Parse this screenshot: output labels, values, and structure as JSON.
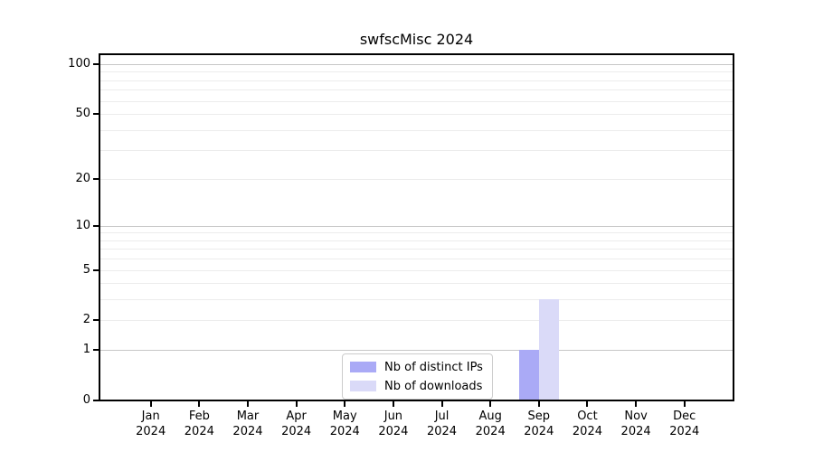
{
  "chart_data": {
    "type": "bar",
    "title": "swfscMisc 2024",
    "categories": [
      {
        "month": "Jan",
        "year": "2024"
      },
      {
        "month": "Feb",
        "year": "2024"
      },
      {
        "month": "Mar",
        "year": "2024"
      },
      {
        "month": "Apr",
        "year": "2024"
      },
      {
        "month": "May",
        "year": "2024"
      },
      {
        "month": "Jun",
        "year": "2024"
      },
      {
        "month": "Jul",
        "year": "2024"
      },
      {
        "month": "Aug",
        "year": "2024"
      },
      {
        "month": "Sep",
        "year": "2024"
      },
      {
        "month": "Oct",
        "year": "2024"
      },
      {
        "month": "Nov",
        "year": "2024"
      },
      {
        "month": "Dec",
        "year": "2024"
      }
    ],
    "series": [
      {
        "name": "Nb of distinct IPs",
        "color": "#aaaaf6",
        "values": [
          0,
          0,
          0,
          0,
          0,
          0,
          0,
          0,
          1,
          0,
          0,
          0
        ]
      },
      {
        "name": "Nb of downloads",
        "color": "#dadaf8",
        "values": [
          0,
          0,
          0,
          0,
          0,
          0,
          0,
          0,
          3,
          0,
          0,
          0
        ]
      }
    ],
    "xlabel": "",
    "ylabel": "",
    "y_scale": "log1p",
    "ylim": [
      0,
      115
    ],
    "y_ticks": [
      0,
      1,
      2,
      5,
      10,
      20,
      50,
      100
    ],
    "grid": {
      "major_values": [
        1,
        10,
        100
      ],
      "minor_values": [
        2,
        3,
        4,
        5,
        6,
        7,
        8,
        9,
        20,
        30,
        40,
        50,
        60,
        70,
        80,
        90
      ],
      "major_color": "#c7c7c7",
      "minor_color": "#ececec"
    },
    "legend_position": "lower center"
  },
  "colors": {
    "spine": "#000000",
    "text": "#000000",
    "legend_border": "#cccccc",
    "background": "#ffffff"
  }
}
